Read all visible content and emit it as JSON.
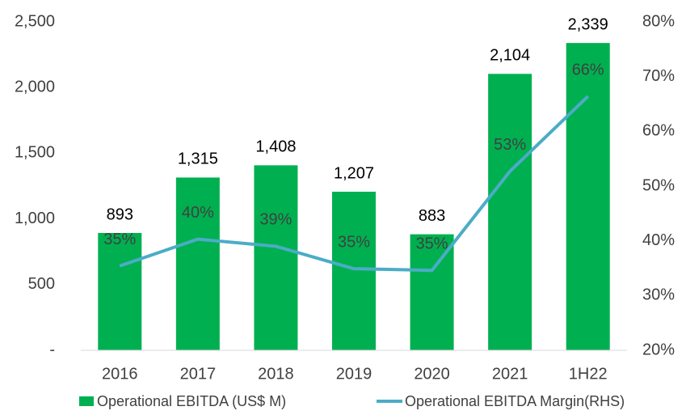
{
  "chart_data": {
    "type": "bar",
    "categories": [
      "2016",
      "2017",
      "2018",
      "2019",
      "2020",
      "2021",
      "1H22"
    ],
    "series": [
      {
        "name": "Operational EBITDA (US$ M)",
        "type": "bar",
        "color": "#00b050",
        "values": [
          893,
          1315,
          1408,
          1207,
          883,
          2104,
          2339
        ],
        "value_labels": [
          "893",
          "1,315",
          "1,408",
          "1,207",
          "883",
          "2,104",
          "2,339"
        ]
      },
      {
        "name": "Operational EBITDA Margin(RHS)",
        "type": "line",
        "axis": "y2",
        "color": "#4bacc6",
        "values": [
          35.4,
          40.3,
          39.0,
          34.9,
          34.6,
          52.7,
          66.4
        ],
        "value_labels": [
          "35%",
          "40%",
          "39%",
          "35%",
          "35%",
          "53%",
          "66%"
        ]
      }
    ],
    "ylim": [
      0,
      2500
    ],
    "yticks": [
      {
        "value": 0,
        "label": "-"
      },
      500,
      {
        "value": 1000,
        "label": "1,000"
      },
      {
        "value": 1500,
        "label": "1,500"
      },
      {
        "value": 2000,
        "label": "2,000"
      },
      {
        "value": 2500,
        "label": "2,500"
      }
    ],
    "y2lim": [
      20,
      80
    ],
    "y2ticks": [
      {
        "value": 20,
        "label": "20%"
      },
      {
        "value": 30,
        "label": "30%"
      },
      {
        "value": 40,
        "label": "40%"
      },
      {
        "value": 50,
        "label": "50%"
      },
      {
        "value": 60,
        "label": "60%"
      },
      {
        "value": 70,
        "label": "70%"
      },
      {
        "value": 80,
        "label": "80%"
      }
    ],
    "legend": "bottom"
  }
}
